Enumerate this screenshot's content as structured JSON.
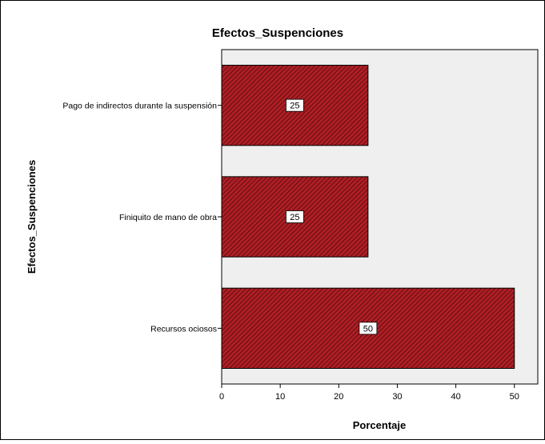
{
  "chart_data": {
    "type": "bar",
    "orientation": "horizontal",
    "title": "Efectos_Suspenciones",
    "xlabel": "Porcentaje",
    "ylabel": "Efectos_Suspenciones",
    "categories": [
      "Pago de indirectos durante la suspensión",
      "Finiquito de mano de obra",
      "Recursos ociosos"
    ],
    "values": [
      25,
      25,
      50
    ],
    "data_labels": [
      "25",
      "25",
      "50"
    ],
    "xlim": [
      0,
      54
    ],
    "xticks": [
      0,
      10,
      20,
      30,
      40,
      50
    ],
    "grid": false,
    "bar_color": "#b01e24",
    "bar_pattern": "diagonal hatch",
    "plot_background": "#efefef"
  }
}
